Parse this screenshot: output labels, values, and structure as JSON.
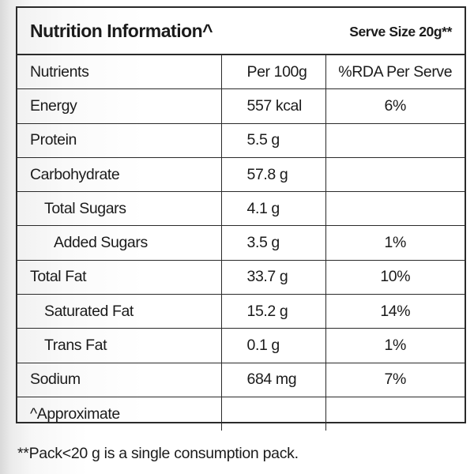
{
  "header": {
    "title": "Nutrition Information^",
    "serve_size": "Serve Size 20g**"
  },
  "table": {
    "columns": [
      "Nutrients",
      "Per 100g",
      "%RDA Per Serve"
    ],
    "rows": [
      {
        "name": "Energy",
        "per_100g": "557 kcal",
        "rda": "6%"
      },
      {
        "name": "Protein",
        "per_100g": "5.5 g",
        "rda": ""
      },
      {
        "name": "Carbohydrate",
        "per_100g": "57.8 g",
        "rda": ""
      },
      {
        "name": "Total Sugars",
        "per_100g": "4.1 g",
        "rda": ""
      },
      {
        "name": "Added Sugars",
        "per_100g": "3.5 g",
        "rda": "1%"
      },
      {
        "name": "Total Fat",
        "per_100g": "33.7 g",
        "rda": "10%"
      },
      {
        "name": "Saturated Fat",
        "per_100g": "15.2 g",
        "rda": "14%"
      },
      {
        "name": "Trans Fat",
        "per_100g": "0.1 g",
        "rda": "1%"
      },
      {
        "name": "Sodium",
        "per_100g": "684 mg",
        "rda": "7%"
      },
      {
        "name": "^Approximate",
        "per_100g": "",
        "rda": ""
      }
    ]
  },
  "footnote": "**Pack<20 g is a single consumption pack."
}
